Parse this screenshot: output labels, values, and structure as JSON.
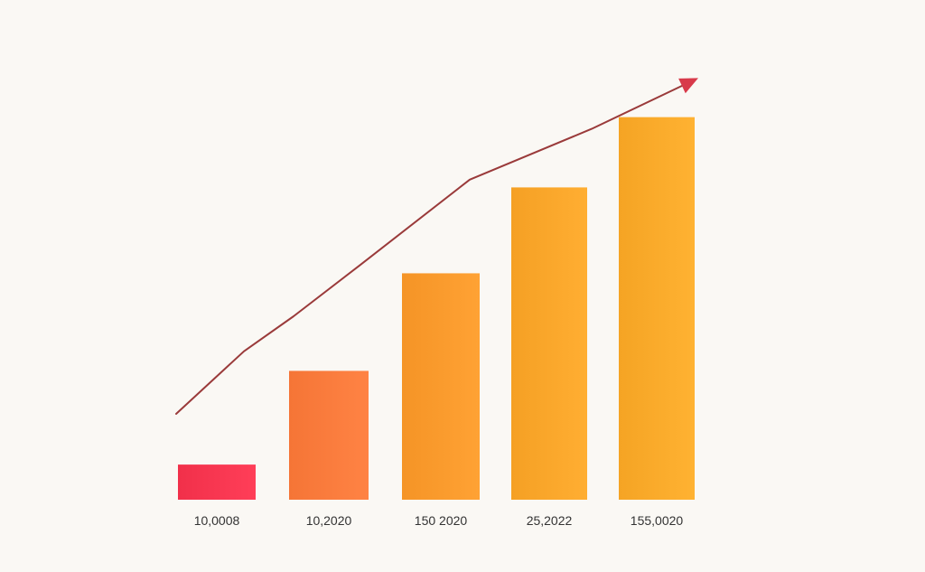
{
  "chart_data": {
    "type": "bar",
    "categories": [
      "10,0008",
      "10,2020",
      "150 2020",
      "25,2022",
      "155,0020"
    ],
    "values": [
      9,
      33,
      58,
      80,
      98
    ],
    "trend": [
      22,
      38,
      47,
      60,
      82,
      95,
      108
    ],
    "ylim": [
      0,
      100
    ],
    "grid": false,
    "legend": "none",
    "colors": {
      "background": "#faf8f4",
      "bars": [
        "#f73650",
        "#fb7b3c",
        "#fb9a2c",
        "#fba62a",
        "#fbaa2a"
      ],
      "trend_line": "#9a3a3a",
      "arrow": "#d83a4a",
      "tick_label": "#333333"
    }
  }
}
